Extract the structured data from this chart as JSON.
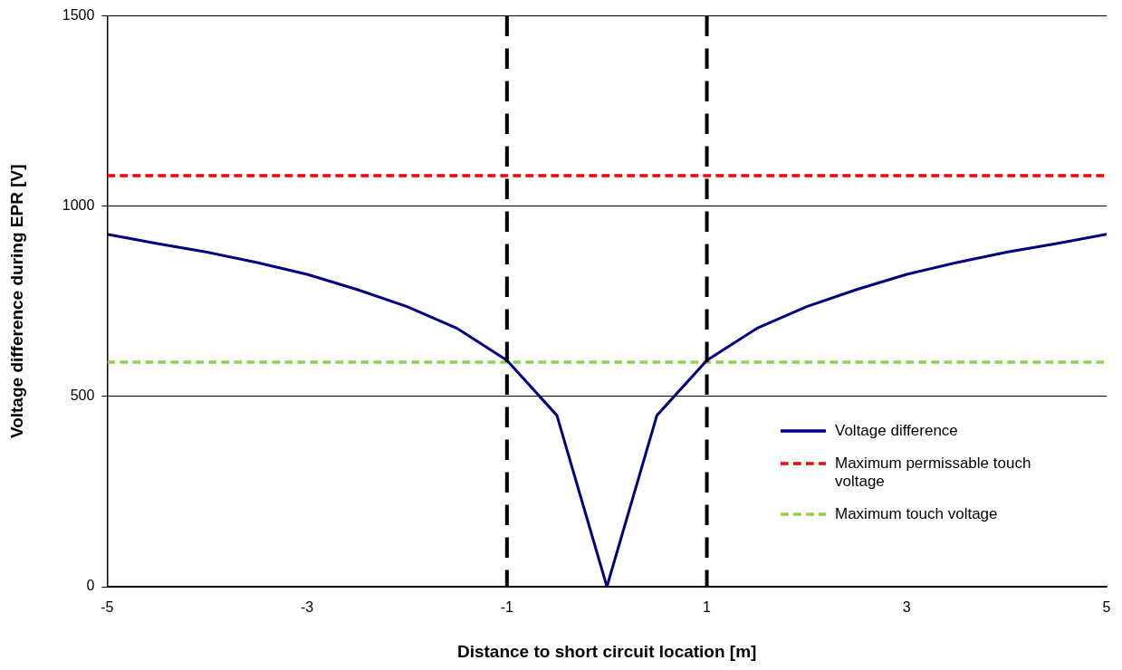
{
  "chart_data": {
    "type": "line",
    "xlabel": "Distance to short circuit location [m]",
    "ylabel": "Voltage difference during EPR [V]",
    "xlim": [
      -5,
      5
    ],
    "xticks": [
      -5,
      -3,
      -1,
      1,
      3,
      5
    ],
    "ylim": [
      0,
      1500
    ],
    "yticks": [
      0,
      500,
      1000,
      1500
    ],
    "grid": "y",
    "legend": "bottom right",
    "marker": "none",
    "series": [
      {
        "name": "Voltage difference",
        "color": "#000080",
        "line_style": "solid",
        "x": [
          -5,
          -4.5,
          -4,
          -3.5,
          -3,
          -2.5,
          -2,
          -1.5,
          -1,
          -0.5,
          0,
          0.5,
          1,
          1.5,
          2,
          2.5,
          3,
          3.5,
          4,
          4.5,
          5
        ],
        "values": [
          926,
          902,
          879,
          852,
          821,
          781,
          736,
          679,
          595,
          450,
          0,
          450,
          595,
          679,
          736,
          781,
          821,
          852,
          879,
          902,
          926
        ]
      },
      {
        "name": "Maximum permissable touch voltage",
        "color": "#ff0000",
        "line_style": "dashed",
        "x": [
          -5,
          5
        ],
        "values": [
          1080,
          1080
        ]
      },
      {
        "name": "Maximum touch voltage",
        "color": "#92d050",
        "line_style": "dashed",
        "x": [
          -5,
          5
        ],
        "values": [
          590,
          590
        ]
      }
    ],
    "ref_lines": [
      {
        "axis": "x",
        "value": -1,
        "color": "#000000",
        "line_style": "dashed"
      },
      {
        "axis": "x",
        "value": 1,
        "color": "#000000",
        "line_style": "dashed"
      }
    ]
  }
}
